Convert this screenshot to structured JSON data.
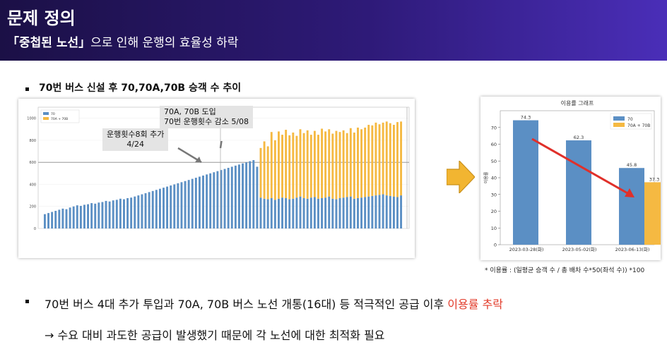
{
  "header": {
    "title": "문제 정의",
    "subtitle_bold": "「중첩된 노선」",
    "subtitle_rest": "으로 인해 운행의 효율성 하락"
  },
  "section": {
    "label": "70번 버스 신설 후 70,70A,70B 승객 수 추이"
  },
  "annotations": {
    "a1_line1": "운행횟수8회 추가",
    "a1_line2": "4/24",
    "a2_line1": "70A, 70B 도입",
    "a2_line2": "70번 운행횟수 감소  5/08"
  },
  "colors": {
    "blue": "#5b8fc4",
    "orange": "#f5b942",
    "red_arrow": "#e0302a",
    "highlight": "#e23b2a",
    "arrow_fill": "#f2b531"
  },
  "chart_data": [
    {
      "type": "bar",
      "title": "",
      "xlabel": "",
      "ylabel": "",
      "ylim": [
        0,
        1100
      ],
      "legend": "top-left",
      "series": [
        {
          "name": "70",
          "color": "#5b8fc4",
          "values": [
            130,
            140,
            150,
            160,
            170,
            180,
            175,
            190,
            200,
            210,
            205,
            215,
            220,
            230,
            225,
            235,
            240,
            250,
            245,
            255,
            260,
            270,
            265,
            275,
            280,
            290,
            300,
            310,
            320,
            330,
            340,
            350,
            360,
            370,
            380,
            390,
            400,
            410,
            420,
            430,
            440,
            450,
            460,
            470,
            480,
            490,
            500,
            510,
            520,
            530,
            540,
            550,
            560,
            570,
            580,
            590,
            600,
            610,
            620,
            560,
            280,
            270,
            265,
            275,
            260,
            270,
            280,
            275,
            265,
            270,
            280,
            290,
            275,
            270,
            280,
            285,
            270,
            275,
            280,
            290,
            270,
            265,
            275,
            280,
            285,
            290,
            270,
            275,
            280,
            285,
            290,
            295,
            300,
            305,
            310,
            300,
            295,
            290,
            285,
            300
          ]
        },
        {
          "name": "70A + 70B",
          "color": "#f5b942",
          "values": [
            0,
            0,
            0,
            0,
            0,
            0,
            0,
            0,
            0,
            0,
            0,
            0,
            0,
            0,
            0,
            0,
            0,
            0,
            0,
            0,
            0,
            0,
            0,
            0,
            0,
            0,
            0,
            0,
            0,
            0,
            0,
            0,
            0,
            0,
            0,
            0,
            0,
            0,
            0,
            0,
            0,
            0,
            0,
            0,
            0,
            0,
            0,
            0,
            0,
            0,
            0,
            0,
            0,
            0,
            0,
            0,
            0,
            0,
            0,
            0,
            450,
            520,
            480,
            600,
            540,
            610,
            570,
            620,
            580,
            600,
            560,
            610,
            590,
            620,
            570,
            600,
            580,
            630,
            600,
            610,
            590,
            620,
            600,
            610,
            580,
            620,
            600,
            640,
            620,
            630,
            650,
            640,
            660,
            640,
            650,
            670,
            660,
            650,
            680,
            670
          ]
        }
      ]
    },
    {
      "type": "bar",
      "title": "이용률 그래프",
      "xlabel": "",
      "ylabel": "이용률",
      "ylim": [
        0,
        80
      ],
      "legend": "top-right",
      "categories": [
        "2023-03-28(화)",
        "2023-05-02(화)",
        "2023-06-13(화)"
      ],
      "series": [
        {
          "name": "70",
          "color": "#5b8fc4",
          "values": [
            74.3,
            62.3,
            45.8
          ]
        },
        {
          "name": "70A + 70B",
          "color": "#f5b942",
          "values": [
            null,
            null,
            37.3
          ]
        }
      ]
    }
  ],
  "footnote": "* 이용률 : (일평균 승객 수 / 총 배차 수*50(좌석 수)) *100",
  "conclusion": {
    "line1_pre": "70번 버스 4대 추가 투입과 70A, 70B 버스 노선 개통(16대) 등 적극적인 공급 이후 ",
    "line1_highlight": "이용률 추락",
    "line2": "→ 수요 대비 과도한 공급이 발생했기 때문에 각 노선에 대한 최적화 필요"
  }
}
